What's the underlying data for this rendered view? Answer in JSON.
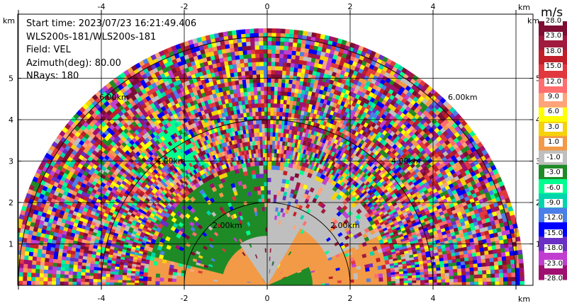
{
  "info": {
    "start_time": "Start time: 2023/07/23 16:21:49.406",
    "instrument": "WLS200s-181/WLS200s-181",
    "field": "Field: VEL",
    "azimuth": "Azimuth(deg): 80.00",
    "nrays": "NRays: 180"
  },
  "axes": {
    "unit": "km",
    "x_ticks": [
      "-4",
      "-2",
      "0",
      "2",
      "4"
    ],
    "y_ticks": [
      "1",
      "2",
      "3",
      "4",
      "5"
    ]
  },
  "ring_labels": [
    "2.00km",
    "2.00km",
    "4.00km",
    "4.00km",
    "6.00km",
    "6.00km"
  ],
  "colorbar": {
    "unit": "m/s",
    "labels": [
      "28.0",
      "23.0",
      "18.0",
      "15.0",
      "12.0",
      "9.0",
      "6.0",
      "3.0",
      "1.0",
      "-1.0",
      "-3.0",
      "-6.0",
      "-9.0",
      "-12.0",
      "-15.0",
      "-18.0",
      "-23.0",
      "-28.0"
    ],
    "colors": [
      "#7e0e33",
      "#a01b3d",
      "#c21f28",
      "#e0383e",
      "#ff6e6e",
      "#ffa37a",
      "#ffff00",
      "#f5d20a",
      "#f29a47",
      "#bfbfbf",
      "#1f8b27",
      "#00ff90",
      "#00d5ae",
      "#4b7ee8",
      "#0000ff",
      "#6a2fc4",
      "#c13fd0",
      "#a01070"
    ]
  }
}
